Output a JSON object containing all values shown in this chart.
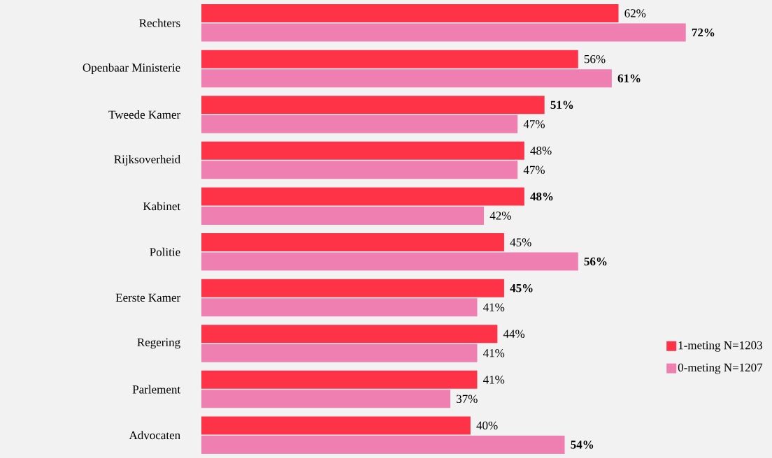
{
  "chart_data": {
    "type": "bar",
    "orientation": "horizontal",
    "categories": [
      "Rechters",
      "Openbaar Ministerie",
      "Tweede Kamer",
      "Rijksoverheid",
      "Kabinet",
      "Politie",
      "Eerste Kamer",
      "Regering",
      "Parlement",
      "Advocaten"
    ],
    "series": [
      {
        "name": "1-meting N=1203",
        "color": "#ff3347",
        "values": [
          62,
          56,
          51,
          48,
          48,
          45,
          45,
          44,
          41,
          40
        ],
        "value_labels": [
          "62%",
          "56%",
          "**51%**",
          "48%",
          "**48%**",
          "45%",
          "**45%**",
          "44%",
          "41%",
          "40%"
        ]
      },
      {
        "name": "0-meting N=1207",
        "color": "#ee7fb0",
        "values": [
          72,
          61,
          47,
          47,
          42,
          56,
          41,
          41,
          37,
          54
        ],
        "value_labels": [
          "**72%**",
          "**61%**",
          "47%",
          "47%",
          "42%",
          "**56%**",
          "41%",
          "41%",
          "37%",
          "**54%**"
        ]
      }
    ],
    "legend": "right"
  }
}
